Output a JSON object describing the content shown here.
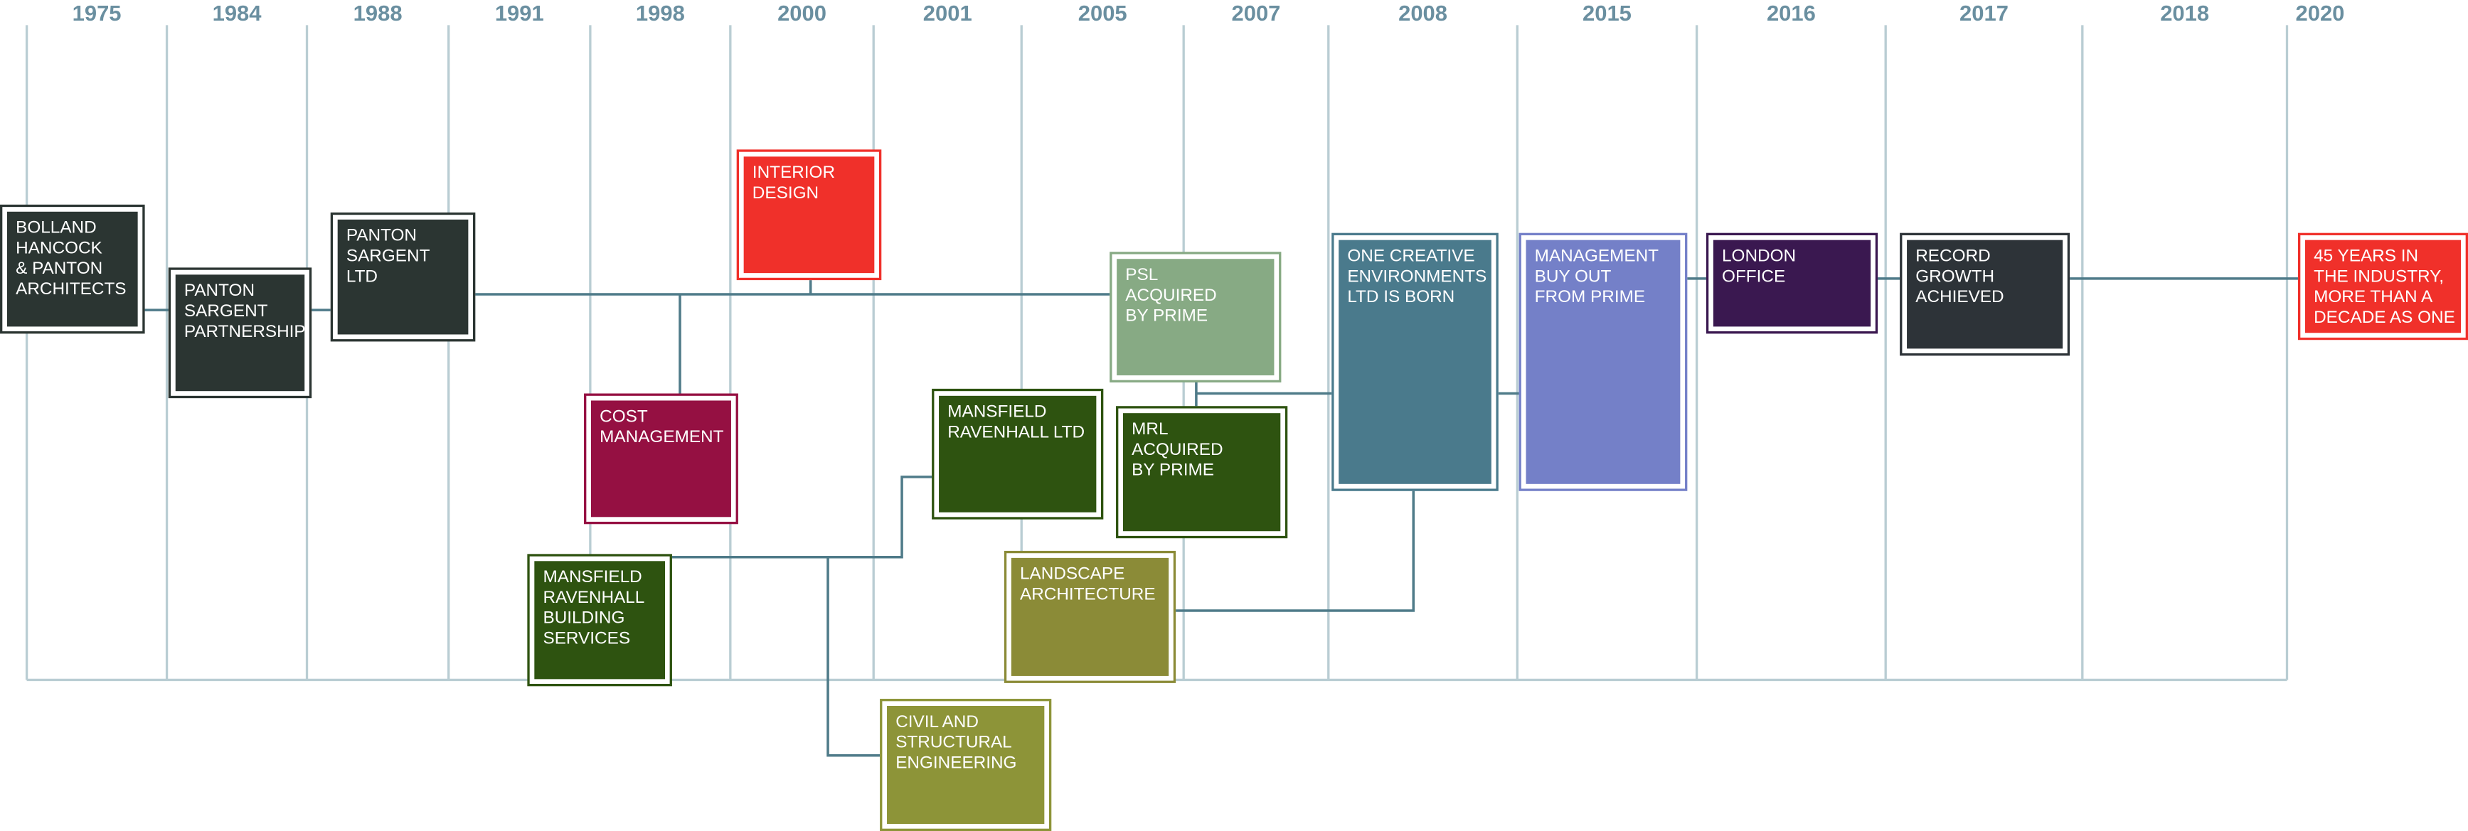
{
  "years": [
    "1975",
    "1984",
    "1988",
    "1991",
    "1998",
    "2000",
    "2001",
    "2005",
    "2007",
    "2008",
    "2015",
    "2016",
    "2017",
    "2018",
    "2020"
  ],
  "nodes": [
    {
      "lines": [
        "BOLLAND",
        "HANCOCK",
        "& PANTON",
        "ARCHITECTS"
      ]
    },
    {
      "lines": [
        "PANTON",
        "SARGENT",
        "PARTNERSHIP"
      ]
    },
    {
      "lines": [
        "PANTON",
        "SARGENT",
        "LTD"
      ]
    },
    {
      "lines": [
        "INTERIOR",
        "DESIGN"
      ]
    },
    {
      "lines": [
        "COST",
        "MANAGEMENT"
      ]
    },
    {
      "lines": [
        "PSL",
        "ACQUIRED",
        "BY PRIME"
      ]
    },
    {
      "lines": [
        "MANSFIELD",
        "RAVENHALL LTD"
      ]
    },
    {
      "lines": [
        "MRL",
        "ACQUIRED",
        "BY PRIME"
      ]
    },
    {
      "lines": [
        "ONE CREATIVE",
        "ENVIRONMENTS",
        "LTD IS BORN"
      ]
    },
    {
      "lines": [
        "MANAGEMENT",
        "BUY OUT",
        "FROM PRIME"
      ]
    },
    {
      "lines": [
        "LONDON",
        "OFFICE"
      ]
    },
    {
      "lines": [
        "RECORD",
        "GROWTH",
        "ACHIEVED"
      ]
    },
    {
      "lines": [
        "45 YEARS IN",
        "THE INDUSTRY,",
        "MORE THAN A",
        "DECADE AS ONE"
      ]
    },
    {
      "lines": [
        "MANSFIELD",
        "RAVENHALL",
        "BUILDING",
        "SERVICES"
      ]
    },
    {
      "lines": [
        "LANDSCAPE",
        "ARCHITECTURE"
      ]
    },
    {
      "lines": [
        "CIVIL AND",
        "STRUCTURAL",
        "ENGINEERING"
      ]
    }
  ]
}
